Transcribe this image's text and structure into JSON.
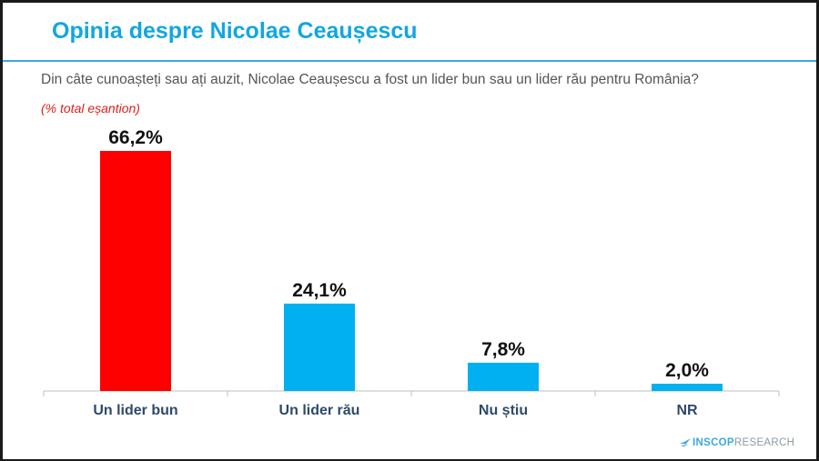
{
  "header": {
    "title": "Opinia despre Nicolae Ceaușescu",
    "question": "Din câte cunoașteți sau ați auzit, Nicolae Ceaușescu a fost un lider bun sau un lider rău pentru România?",
    "note": "(% total eșantion)"
  },
  "logo": {
    "brand": "INSCOP",
    "suffix": "RESEARCH"
  },
  "colors": {
    "title": "#12a6e0",
    "highlight_bar": "#ff0000",
    "bar": "#00b0f0",
    "note": "#e0201a"
  },
  "chart_data": {
    "type": "bar",
    "categories": [
      "Un lider bun",
      "Un lider rău",
      "Nu știu",
      "NR"
    ],
    "values": [
      66.2,
      24.1,
      7.8,
      2.0
    ],
    "value_labels": [
      "66,2%",
      "24,1%",
      "7,8%",
      "2,0%"
    ],
    "bar_colors": [
      "#ff0000",
      "#00b0f0",
      "#00b0f0",
      "#00b0f0"
    ],
    "title": "Opinia despre Nicolae Ceaușescu",
    "xlabel": "",
    "ylabel": "",
    "ylim": [
      0,
      66.2
    ],
    "grid": false,
    "legend": "none"
  }
}
